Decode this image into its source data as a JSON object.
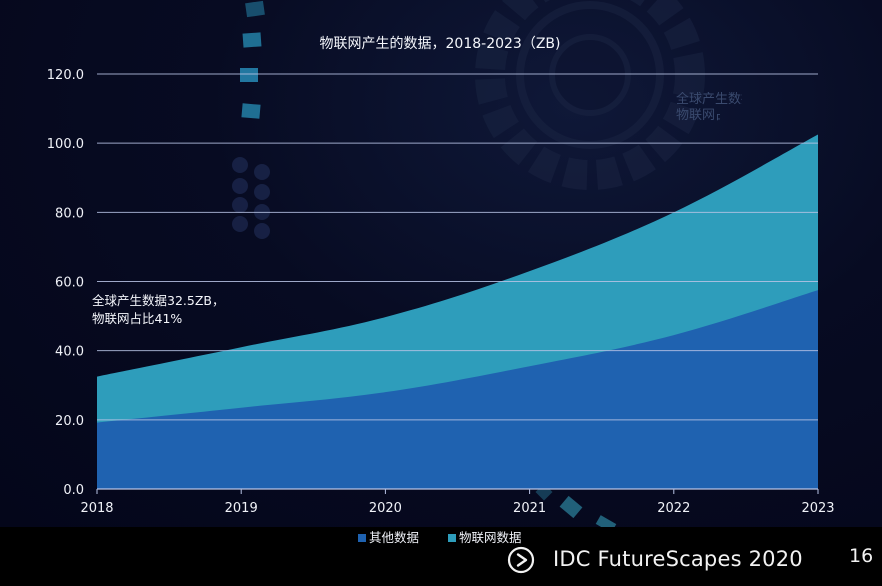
{
  "chart_data": {
    "type": "area",
    "stacked": true,
    "title": "物联网产生的数据，2018-2023（ZB)",
    "categories": [
      "2018",
      "2019",
      "2020",
      "2021",
      "2022",
      "2023"
    ],
    "series": [
      {
        "name": "其他数据",
        "color": "#1f62b0",
        "values": [
          19.2,
          23.5,
          28.0,
          35.5,
          44.5,
          57.5
        ]
      },
      {
        "name": "物联网数据",
        "color": "#2e9dbb",
        "values": [
          13.3,
          17.5,
          21.7,
          27.5,
          35.5,
          45.0
        ]
      }
    ],
    "ylim": [
      0,
      120
    ],
    "yticks": [
      "0.0",
      "20.0",
      "40.0",
      "60.0",
      "80.0",
      "100.0",
      "120.0"
    ],
    "grid": true,
    "legend_position": "bottom",
    "annotation_lines": [
      "全球产生数据32.5ZB，",
      "物联网占比41%"
    ]
  },
  "footer": {
    "brand": "IDC FutureScapes 2020",
    "page_number": "16"
  },
  "icons": {
    "logo": "play-circle-icon"
  }
}
